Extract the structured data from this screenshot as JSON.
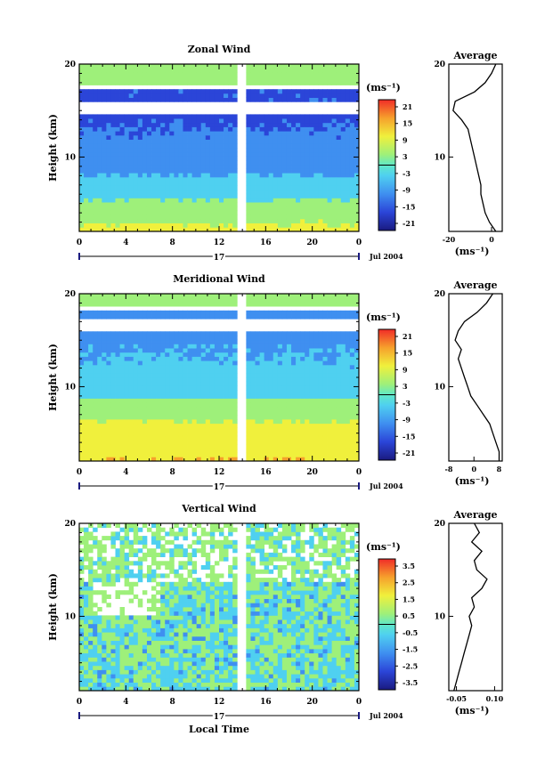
{
  "chart_data": [
    {
      "type": "heatmap",
      "title": "Zonal Wind",
      "ylabel": "Height (km)",
      "x_ticks": [
        "0",
        "4",
        "8",
        "12",
        "16",
        "20",
        "0"
      ],
      "y_ticks": [
        "10",
        "20"
      ],
      "xlim": [
        0,
        24
      ],
      "ylim": [
        2,
        20
      ],
      "date_day": "17",
      "date_month": "Jul 2004",
      "colorbar_unit": "(ms⁻¹)",
      "colorbar_ticks": [
        "21",
        "15",
        "9",
        "3",
        "-3",
        "-9",
        "-15",
        "-21"
      ],
      "average_panel": {
        "title": "Average",
        "y_ticks": [
          "10",
          "20"
        ],
        "x_ticks": [
          "-20",
          "0"
        ],
        "xlabel": "(ms⁻¹)",
        "xlim": [
          -20,
          5
        ],
        "height_km": [
          2,
          3,
          4,
          5,
          6,
          7,
          8,
          9,
          10,
          11,
          12,
          13,
          14,
          15,
          16,
          17,
          18,
          19,
          20
        ],
        "values": [
          2,
          -1,
          -3,
          -4,
          -5,
          -5,
          -6,
          -7,
          -8,
          -9,
          -10,
          -11,
          -14,
          -18,
          -17,
          -8,
          -3,
          0,
          2
        ]
      }
    },
    {
      "type": "heatmap",
      "title": "Meridional Wind",
      "ylabel": "Height (km)",
      "x_ticks": [
        "0",
        "4",
        "8",
        "12",
        "16",
        "20",
        "0"
      ],
      "y_ticks": [
        "10",
        "20"
      ],
      "xlim": [
        0,
        24
      ],
      "ylim": [
        2,
        20
      ],
      "date_day": "17",
      "date_month": "Jul 2004",
      "colorbar_unit": "(ms⁻¹)",
      "colorbar_ticks": [
        "21",
        "15",
        "9",
        "3",
        "-3",
        "-9",
        "-15",
        "-21"
      ],
      "average_panel": {
        "title": "Average",
        "y_ticks": [
          "10",
          "20"
        ],
        "x_ticks": [
          "-8",
          "0",
          "8"
        ],
        "xlabel": "(ms⁻¹)",
        "xlim": [
          -8,
          9
        ],
        "height_km": [
          2,
          3,
          4,
          5,
          6,
          7,
          8,
          9,
          10,
          11,
          12,
          13,
          14,
          15,
          16,
          17,
          18,
          19,
          20
        ],
        "values": [
          8,
          8,
          7,
          6,
          5,
          3,
          1,
          -1,
          -2,
          -3,
          -4,
          -5,
          -4,
          -6,
          -5,
          -3,
          1,
          4,
          6
        ]
      }
    },
    {
      "type": "heatmap",
      "title": "Vertical Wind",
      "xlabel": "Local Time",
      "ylabel": "Height (km)",
      "x_ticks": [
        "0",
        "4",
        "8",
        "12",
        "16",
        "20",
        "0"
      ],
      "y_ticks": [
        "10",
        "20"
      ],
      "xlim": [
        0,
        24
      ],
      "ylim": [
        2,
        20
      ],
      "date_day": "17",
      "date_month": "Jul 2004",
      "colorbar_unit": "(ms⁻¹)",
      "colorbar_ticks": [
        "3.5",
        "2.5",
        "1.5",
        "0.5",
        "-0.5",
        "-1.5",
        "-2.5",
        "-3.5"
      ],
      "average_panel": {
        "title": "Average",
        "y_ticks": [
          "10",
          "20"
        ],
        "x_ticks": [
          "-0.05",
          "0.10"
        ],
        "xlabel": "(ms⁻¹)",
        "xlim": [
          -0.08,
          0.13
        ],
        "height_km": [
          2,
          3,
          4,
          5,
          6,
          7,
          8,
          9,
          10,
          11,
          12,
          13,
          14,
          15,
          16,
          17,
          18,
          19,
          20
        ],
        "values": [
          -0.06,
          -0.05,
          -0.04,
          -0.03,
          -0.02,
          -0.01,
          0.0,
          0.01,
          0.0,
          0.02,
          0.01,
          0.05,
          0.07,
          0.03,
          0.02,
          0.05,
          0.01,
          0.04,
          0.02
        ]
      }
    }
  ]
}
